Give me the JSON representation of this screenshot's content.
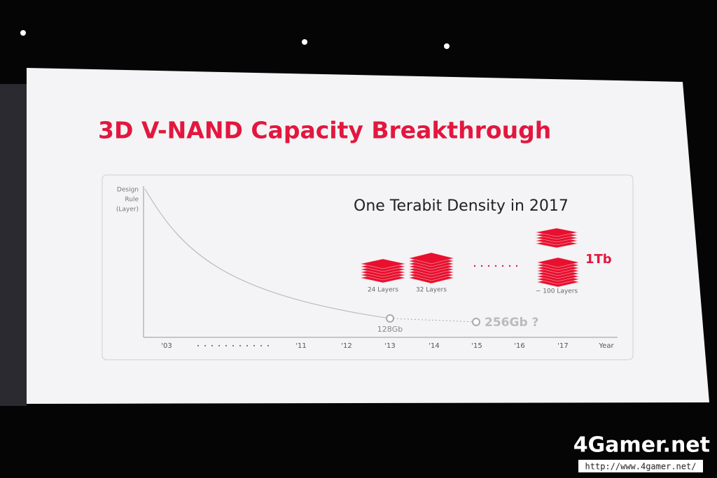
{
  "slide": {
    "title": "3D V-NAND Capacity Breakthrough",
    "y_axis_label": [
      "Design",
      "Rule",
      "(Layer)"
    ],
    "headline": "One Terabit Density in 2017",
    "stacks": [
      "24 Layers",
      "32 Layers",
      "~ 100 Layers"
    ],
    "capacity": "1Tb",
    "points": [
      "128Gb",
      "256Gb ?"
    ],
    "x_labels": [
      "'03",
      "'11",
      "'12",
      "'13",
      "'14",
      "'15",
      "'16",
      "'17"
    ],
    "x_axis_label": "Year"
  },
  "watermark": {
    "brand": "4Gamer.net",
    "url": "http://www.4gamer.net/"
  }
}
